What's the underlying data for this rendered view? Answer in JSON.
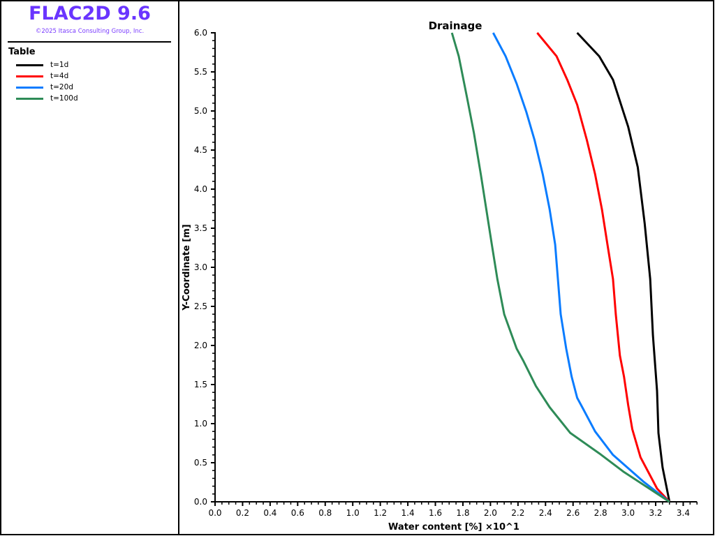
{
  "header": {
    "title": "FLAC2D 9.6",
    "copyright": "©2025 Itasca Consulting Group, Inc."
  },
  "legend": {
    "title": "Table"
  },
  "chart_data": {
    "type": "line",
    "title": "Drainage",
    "xlabel": "Water content [%] ×10^1",
    "ylabel": "Y-Coordinate [m]",
    "xlim": [
      0,
      3.5
    ],
    "ylim": [
      0,
      6
    ],
    "xticks": [
      "0.0",
      "0.2",
      "0.4",
      "0.6",
      "0.8",
      "1.0",
      "1.2",
      "1.4",
      "1.6",
      "1.8",
      "2.0",
      "2.2",
      "2.4",
      "2.6",
      "2.8",
      "3.0",
      "3.2",
      "3.4"
    ],
    "yticks": [
      "0.0",
      "0.5",
      "1.0",
      "1.5",
      "2.0",
      "2.5",
      "3.0",
      "3.5",
      "4.0",
      "4.5",
      "5.0",
      "5.5",
      "6.0"
    ],
    "grid": false,
    "series": [
      {
        "name": "t=1d",
        "color": "#000000",
        "points": [
          [
            2.63,
            6.0
          ],
          [
            2.79,
            5.7
          ],
          [
            2.89,
            5.4
          ],
          [
            3.0,
            4.8
          ],
          [
            3.07,
            4.28
          ],
          [
            3.12,
            3.56
          ],
          [
            3.16,
            2.85
          ],
          [
            3.18,
            2.13
          ],
          [
            3.21,
            1.42
          ],
          [
            3.22,
            0.88
          ],
          [
            3.25,
            0.44
          ],
          [
            3.3,
            0.0
          ]
        ]
      },
      {
        "name": "t=4d",
        "color": "#ff0000",
        "points": [
          [
            2.34,
            6.0
          ],
          [
            2.48,
            5.7
          ],
          [
            2.56,
            5.39
          ],
          [
            2.63,
            5.08
          ],
          [
            2.7,
            4.63
          ],
          [
            2.76,
            4.19
          ],
          [
            2.81,
            3.74
          ],
          [
            2.85,
            3.29
          ],
          [
            2.89,
            2.85
          ],
          [
            2.91,
            2.4
          ],
          [
            2.94,
            1.87
          ],
          [
            2.97,
            1.6
          ],
          [
            3.0,
            1.24
          ],
          [
            3.03,
            0.93
          ],
          [
            3.09,
            0.57
          ],
          [
            3.21,
            0.17
          ],
          [
            3.3,
            0.0
          ]
        ]
      },
      {
        "name": "t=20d",
        "color": "#0a7cff",
        "points": [
          [
            2.02,
            6.0
          ],
          [
            2.11,
            5.7
          ],
          [
            2.19,
            5.35
          ],
          [
            2.26,
            4.99
          ],
          [
            2.32,
            4.63
          ],
          [
            2.38,
            4.19
          ],
          [
            2.43,
            3.74
          ],
          [
            2.47,
            3.29
          ],
          [
            2.49,
            2.85
          ],
          [
            2.51,
            2.4
          ],
          [
            2.55,
            1.96
          ],
          [
            2.59,
            1.6
          ],
          [
            2.63,
            1.33
          ],
          [
            2.67,
            1.2
          ],
          [
            2.76,
            0.9
          ],
          [
            2.89,
            0.6
          ],
          [
            3.11,
            0.26
          ],
          [
            3.3,
            0.0
          ]
        ]
      },
      {
        "name": "t=100d",
        "color": "#2e8b57",
        "points": [
          [
            1.72,
            6.0
          ],
          [
            1.77,
            5.7
          ],
          [
            1.83,
            5.17
          ],
          [
            1.88,
            4.72
          ],
          [
            1.93,
            4.19
          ],
          [
            1.97,
            3.74
          ],
          [
            2.01,
            3.29
          ],
          [
            2.05,
            2.85
          ],
          [
            2.1,
            2.4
          ],
          [
            2.19,
            1.96
          ],
          [
            2.24,
            1.8
          ],
          [
            2.33,
            1.48
          ],
          [
            2.43,
            1.21
          ],
          [
            2.58,
            0.88
          ],
          [
            2.79,
            0.62
          ],
          [
            2.97,
            0.38
          ],
          [
            3.3,
            0.0
          ]
        ]
      }
    ]
  }
}
